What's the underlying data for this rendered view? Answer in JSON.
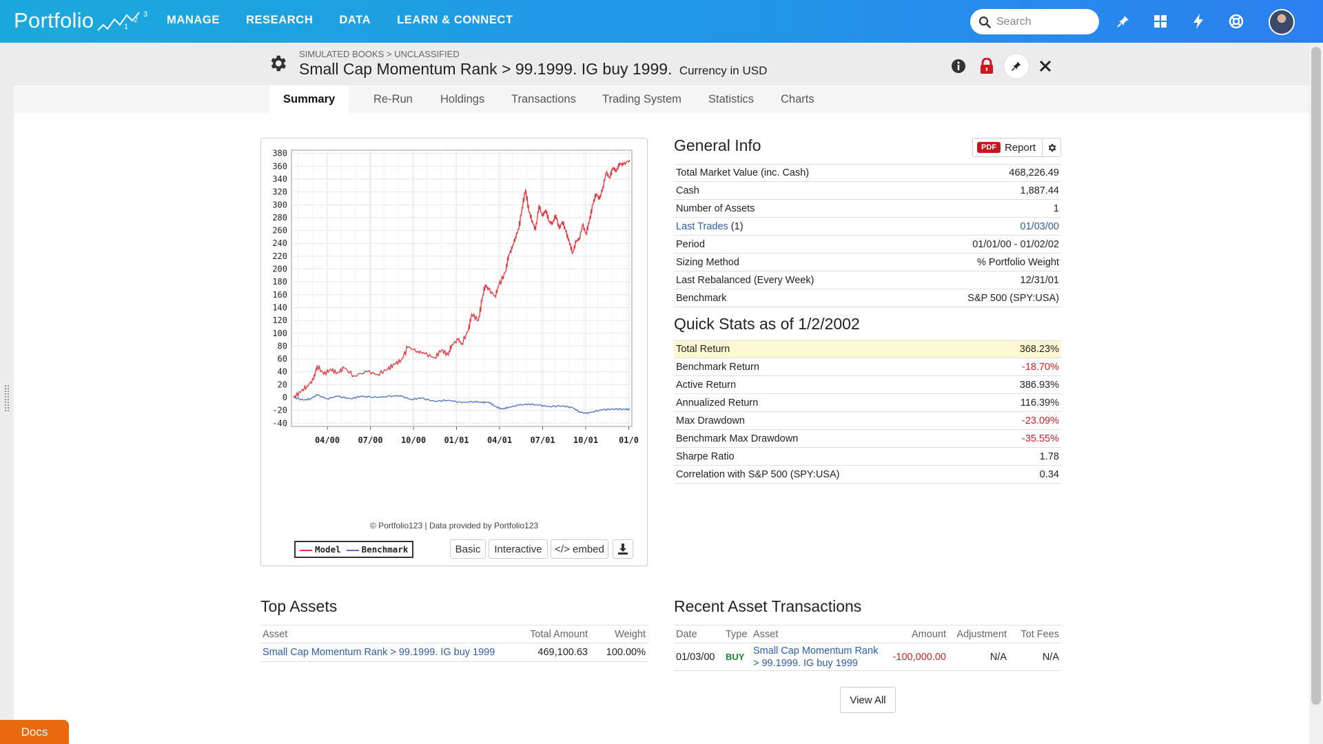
{
  "app": {
    "logo_text": "Portfolio",
    "logo_superscript": "1 2 3"
  },
  "nav": {
    "items": [
      "MANAGE",
      "RESEARCH",
      "DATA",
      "LEARN & CONNECT"
    ]
  },
  "search": {
    "placeholder": "Search"
  },
  "header": {
    "breadcrumb": "SIMULATED BOOKS > UNCLASSIFIED",
    "title": "Small Cap Momentum Rank > 99.1999. IG buy 1999.",
    "currency": "Currency in USD"
  },
  "tabs": [
    "Summary",
    "Re-Run",
    "Holdings",
    "Transactions",
    "Trading System",
    "Statistics",
    "Charts"
  ],
  "chart_data": {
    "type": "line",
    "x_ticks": [
      "04/00",
      "07/00",
      "10/00",
      "01/01",
      "04/01",
      "07/01",
      "10/01",
      "01/0"
    ],
    "y_ticks": [
      380,
      360,
      340,
      320,
      300,
      280,
      260,
      240,
      220,
      200,
      180,
      160,
      140,
      120,
      100,
      80,
      60,
      40,
      20,
      0,
      -20,
      -40
    ],
    "ylim": [
      -45,
      385
    ],
    "x_range": [
      "01/00",
      "01/02"
    ],
    "series": [
      {
        "name": "Model",
        "color": "#e8333a",
        "points": [
          [
            0,
            0
          ],
          [
            0.02,
            8
          ],
          [
            0.04,
            18
          ],
          [
            0.06,
            28
          ],
          [
            0.07,
            50
          ],
          [
            0.09,
            36
          ],
          [
            0.11,
            44
          ],
          [
            0.13,
            38
          ],
          [
            0.15,
            46
          ],
          [
            0.18,
            34
          ],
          [
            0.22,
            40
          ],
          [
            0.25,
            36
          ],
          [
            0.28,
            44
          ],
          [
            0.3,
            52
          ],
          [
            0.32,
            58
          ],
          [
            0.34,
            78
          ],
          [
            0.37,
            72
          ],
          [
            0.39,
            68
          ],
          [
            0.42,
            62
          ],
          [
            0.44,
            74
          ],
          [
            0.46,
            66
          ],
          [
            0.47,
            82
          ],
          [
            0.49,
            90
          ],
          [
            0.5,
            84
          ],
          [
            0.52,
            104
          ],
          [
            0.53,
            130
          ],
          [
            0.55,
            120
          ],
          [
            0.56,
            150
          ],
          [
            0.57,
            176
          ],
          [
            0.58,
            168
          ],
          [
            0.6,
            158
          ],
          [
            0.61,
            174
          ],
          [
            0.63,
            195
          ],
          [
            0.64,
            222
          ],
          [
            0.65,
            232
          ],
          [
            0.66,
            250
          ],
          [
            0.67,
            262
          ],
          [
            0.68,
            296
          ],
          [
            0.69,
            323
          ],
          [
            0.7,
            290
          ],
          [
            0.71,
            275
          ],
          [
            0.72,
            260
          ],
          [
            0.73,
            300
          ],
          [
            0.74,
            282
          ],
          [
            0.75,
            292
          ],
          [
            0.76,
            274
          ],
          [
            0.77,
            270
          ],
          [
            0.78,
            285
          ],
          [
            0.79,
            262
          ],
          [
            0.8,
            275
          ],
          [
            0.81,
            258
          ],
          [
            0.82,
            242
          ],
          [
            0.83,
            225
          ],
          [
            0.84,
            242
          ],
          [
            0.85,
            248
          ],
          [
            0.86,
            268
          ],
          [
            0.87,
            255
          ],
          [
            0.88,
            275
          ],
          [
            0.89,
            300
          ],
          [
            0.9,
            318
          ],
          [
            0.91,
            308
          ],
          [
            0.92,
            328
          ],
          [
            0.93,
            350
          ],
          [
            0.94,
            342
          ],
          [
            0.95,
            358
          ],
          [
            0.96,
            352
          ],
          [
            0.97,
            365
          ],
          [
            0.98,
            362
          ],
          [
            1.0,
            370
          ]
        ]
      },
      {
        "name": "Benchmark",
        "color": "#4a72c9",
        "points": [
          [
            0,
            0
          ],
          [
            0.03,
            -4
          ],
          [
            0.05,
            -2
          ],
          [
            0.07,
            4
          ],
          [
            0.1,
            -2
          ],
          [
            0.13,
            2
          ],
          [
            0.17,
            -2
          ],
          [
            0.2,
            2
          ],
          [
            0.25,
            0
          ],
          [
            0.3,
            3
          ],
          [
            0.32,
            2
          ],
          [
            0.35,
            -3
          ],
          [
            0.38,
            -1
          ],
          [
            0.42,
            -6
          ],
          [
            0.46,
            -4
          ],
          [
            0.5,
            -8
          ],
          [
            0.54,
            -6
          ],
          [
            0.56,
            -8
          ],
          [
            0.58,
            -7
          ],
          [
            0.6,
            -14
          ],
          [
            0.62,
            -18
          ],
          [
            0.64,
            -15
          ],
          [
            0.67,
            -12
          ],
          [
            0.7,
            -10
          ],
          [
            0.73,
            -12
          ],
          [
            0.76,
            -14
          ],
          [
            0.8,
            -13
          ],
          [
            0.83,
            -16
          ],
          [
            0.85,
            -22
          ],
          [
            0.87,
            -25
          ],
          [
            0.89,
            -22
          ],
          [
            0.92,
            -19
          ],
          [
            0.95,
            -18
          ],
          [
            0.98,
            -18
          ],
          [
            1.0,
            -18.7
          ]
        ]
      }
    ]
  },
  "chart": {
    "credit": "© Portfolio123 | Data provided by Portfolio123",
    "legend": [
      "Model",
      "Benchmark"
    ],
    "buttons": [
      "Basic",
      "Interactive",
      "</> embed"
    ]
  },
  "general_info": {
    "title": "General Info",
    "report_badge": "PDF",
    "report_label": "Report",
    "rows": [
      {
        "label": "Total Market Value (inc. Cash)",
        "value": "468,226.49"
      },
      {
        "label": "Cash",
        "value": "1,887.44"
      },
      {
        "label": "Number of Assets",
        "value": "1"
      },
      {
        "label": "Last Trades",
        "count": "(1)",
        "value": "01/03/00"
      },
      {
        "label": "Period",
        "value": "01/01/00 - 01/02/02"
      },
      {
        "label": "Sizing Method",
        "value": "% Portfolio Weight"
      },
      {
        "label": "Last Rebalanced (Every Week)",
        "value": "12/31/01"
      },
      {
        "label": "Benchmark",
        "value": "S&P 500 (SPY:USA)"
      }
    ]
  },
  "quick_stats": {
    "title": "Quick Stats as of 1/2/2002",
    "rows": [
      {
        "label": "Total Return",
        "value": "368.23%"
      },
      {
        "label": "Benchmark Return",
        "value": "-18.70%"
      },
      {
        "label": "Active Return",
        "value": "386.93%"
      },
      {
        "label": "Annualized Return",
        "value": "116.39%"
      },
      {
        "label": "Max Drawdown",
        "value": "-23.09%"
      },
      {
        "label": "Benchmark Max Drawdown",
        "value": "-35.55%"
      },
      {
        "label": "Sharpe Ratio",
        "value": "1.78"
      },
      {
        "label": "Correlation with S&P 500 (SPY:USA)",
        "value": "0.34"
      }
    ]
  },
  "top_assets": {
    "title": "Top Assets",
    "headers": [
      "Asset",
      "Total Amount",
      "Weight"
    ],
    "rows": [
      {
        "asset": "Small Cap Momentum Rank > 99.1999. IG buy 1999",
        "amount": "469,100.63",
        "weight": "100.00%"
      }
    ]
  },
  "recent_tx": {
    "title": "Recent Asset Transactions",
    "headers": [
      "Date",
      "Type",
      "Asset",
      "Amount",
      "Adjustment",
      "Tot Fees"
    ],
    "rows": [
      {
        "date": "01/03/00",
        "type": "BUY",
        "asset_line1": "Small Cap Momentum Rank",
        "asset_line2": "> 99.1999. IG buy 1999",
        "amount": "-100,000.00",
        "adjustment": "N/A",
        "fees": "N/A"
      }
    ],
    "view_all": "View All"
  },
  "docs": {
    "label": "Docs"
  }
}
